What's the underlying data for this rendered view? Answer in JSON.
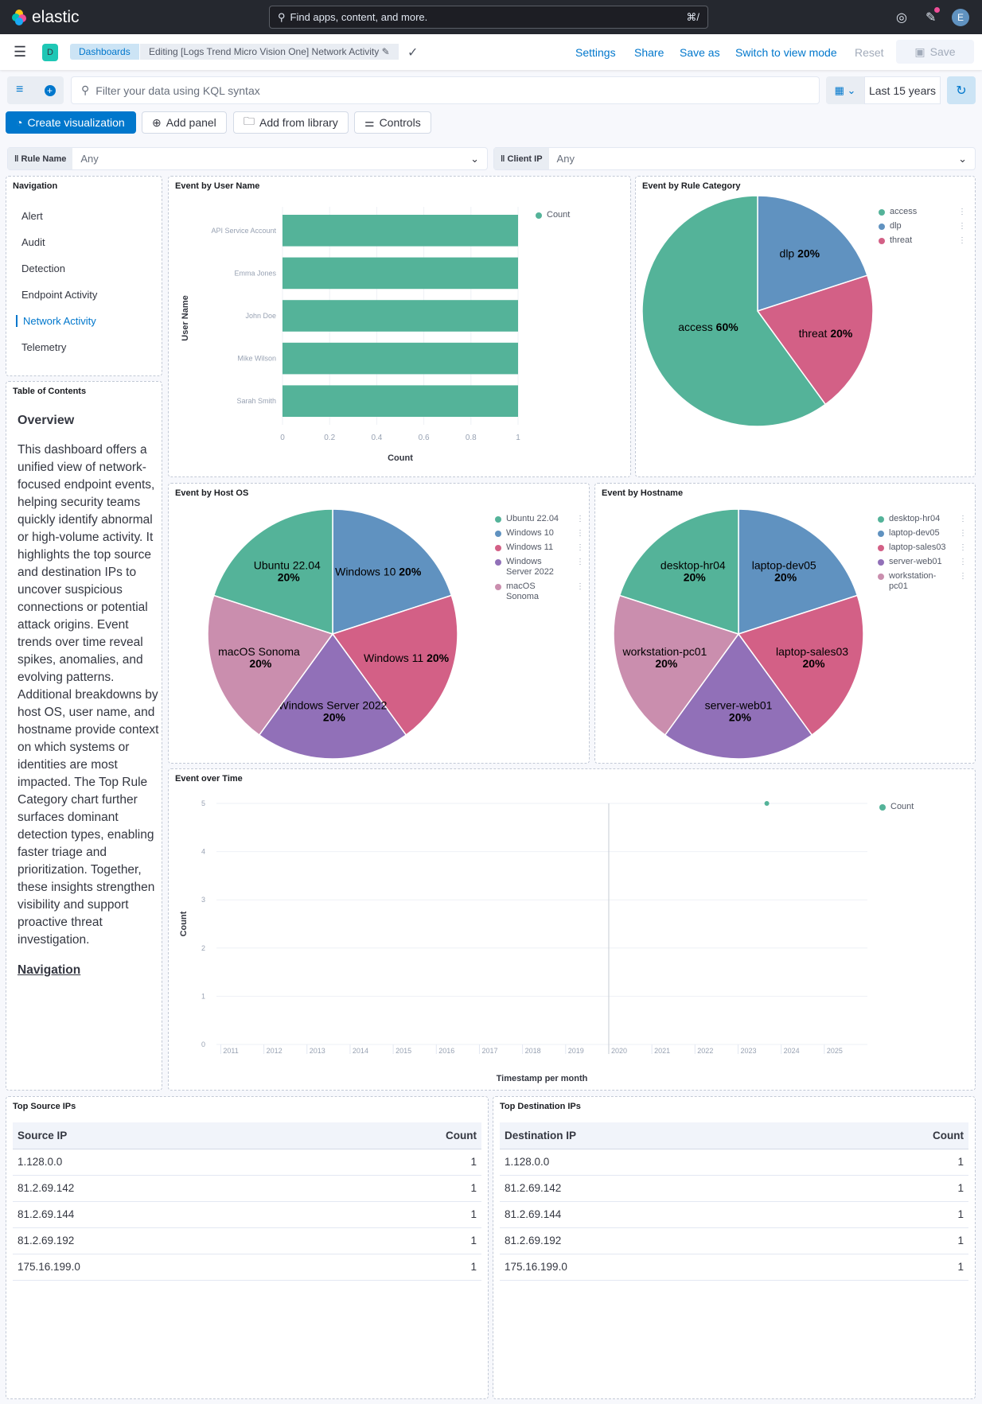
{
  "header": {
    "brand": "elastic",
    "search_placeholder": "Find apps, content, and more.",
    "shortcut": "⌘/",
    "avatar": "E"
  },
  "nav": {
    "space": "D",
    "breadcrumbs": [
      "Dashboards",
      "Editing [Logs Trend Micro Vision One] Network Activity"
    ],
    "links": [
      "Settings",
      "Share",
      "Save as",
      "Switch to view mode",
      "Reset"
    ],
    "save": "Save"
  },
  "query": {
    "placeholder": "Filter your data using KQL syntax",
    "time": "Last 15 years"
  },
  "toolbar": {
    "create": "Create visualization",
    "add_panel": "Add panel",
    "add_library": "Add from library",
    "controls": "Controls"
  },
  "controls": [
    {
      "label": "Rule Name",
      "value": "Any"
    },
    {
      "label": "Client IP",
      "value": "Any"
    }
  ],
  "navigation": {
    "title": "Navigation",
    "items": [
      "Alert",
      "Audit",
      "Detection",
      "Endpoint Activity",
      "Network Activity",
      "Telemetry"
    ],
    "active": "Network Activity"
  },
  "toc": {
    "title": "Table of Contents",
    "heading": "Overview",
    "body": "This dashboard offers a unified view of network-focused endpoint events, helping security teams quickly identify abnormal or high-volume activity. It highlights the top source and destination IPs to uncover suspicious connections or potential attack origins. Event trends over time reveal spikes, anomalies, and evolving patterns. Additional breakdowns by host OS, user name, and hostname provide context on which systems or identities are most impacted. The Top Rule Category chart further surfaces dominant detection types, enabling faster triage and prioritization. Together, these insights strengthen visibility and support proactive threat investigation.",
    "link": "Navigation"
  },
  "colors": {
    "green": "#54b399",
    "blue": "#6092c0",
    "red": "#d36086",
    "purple": "#9170b8",
    "pink": "#ca8eae",
    "accent": "#0077cc"
  },
  "chart_data": [
    {
      "id": "user",
      "type": "bar",
      "orientation": "horizontal",
      "title": "Event by User Name",
      "categories": [
        "API Service Account",
        "Emma Jones",
        "John Doe",
        "Mike Wilson",
        "Sarah Smith"
      ],
      "values": [
        1,
        1,
        1,
        1,
        1
      ],
      "xlabel": "Count",
      "ylabel": "User Name",
      "xlim": [
        0,
        1
      ],
      "ticks": [
        "0",
        "0.2",
        "0.4",
        "0.6",
        "0.8",
        "1"
      ],
      "legend": [
        "Count"
      ],
      "legend_position": "top-right",
      "color": "#54b399"
    },
    {
      "id": "rule",
      "type": "pie",
      "title": "Event by Rule Category",
      "slices": [
        {
          "label": "dlp",
          "value": 20,
          "color": "#6092c0"
        },
        {
          "label": "threat",
          "value": 20,
          "color": "#d36086"
        },
        {
          "label": "access",
          "value": 60,
          "color": "#54b399"
        }
      ],
      "legend": [
        "access",
        "dlp",
        "threat"
      ]
    },
    {
      "id": "os",
      "type": "pie",
      "title": "Event by Host OS",
      "slices": [
        {
          "label": "Windows 10",
          "value": 20,
          "color": "#6092c0"
        },
        {
          "label": "Windows 11",
          "value": 20,
          "color": "#d36086"
        },
        {
          "label": "Windows Server 2022",
          "value": 20,
          "color": "#9170b8"
        },
        {
          "label": "macOS Sonoma",
          "value": 20,
          "color": "#ca8eae"
        },
        {
          "label": "Ubuntu 22.04",
          "value": 20,
          "color": "#54b399"
        }
      ],
      "legend": [
        "Ubuntu 22.04",
        "Windows 10",
        "Windows 11",
        "Windows Server 2022",
        "macOS Sonoma"
      ]
    },
    {
      "id": "host",
      "type": "pie",
      "title": "Event by Hostname",
      "slices": [
        {
          "label": "laptop-dev05",
          "value": 20,
          "color": "#6092c0"
        },
        {
          "label": "laptop-sales03",
          "value": 20,
          "color": "#d36086"
        },
        {
          "label": "server-web01",
          "value": 20,
          "color": "#9170b8"
        },
        {
          "label": "workstation-pc01",
          "value": 20,
          "color": "#ca8eae"
        },
        {
          "label": "desktop-hr04",
          "value": 20,
          "color": "#54b399"
        }
      ],
      "legend": [
        "desktop-hr04",
        "laptop-dev05",
        "laptop-sales03",
        "server-web01",
        "workstation-pc01"
      ]
    },
    {
      "id": "time",
      "type": "scatter",
      "title": "Event over Time",
      "xlabel": "Timestamp per month",
      "ylabel": "Count",
      "x_ticks": [
        "2011",
        "2012",
        "2013",
        "2014",
        "2015",
        "2016",
        "2017",
        "2018",
        "2019",
        "2020",
        "2021",
        "2022",
        "2023",
        "2024",
        "2025"
      ],
      "y_ticks": [
        "0",
        "1",
        "2",
        "3",
        "4",
        "5"
      ],
      "ylim": [
        0,
        5
      ],
      "points": [
        {
          "x": "2023-09",
          "y": 5
        }
      ],
      "marker_line": "2020-01",
      "legend": [
        "Count"
      ],
      "grid": true
    }
  ],
  "tables": [
    {
      "title": "Top Source IPs",
      "columns": [
        "Source IP",
        "Count"
      ],
      "rows": [
        [
          "1.128.0.0",
          "1"
        ],
        [
          "81.2.69.142",
          "1"
        ],
        [
          "81.2.69.144",
          "1"
        ],
        [
          "81.2.69.192",
          "1"
        ],
        [
          "175.16.199.0",
          "1"
        ]
      ]
    },
    {
      "title": "Top Destination IPs",
      "columns": [
        "Destination IP",
        "Count"
      ],
      "rows": [
        [
          "1.128.0.0",
          "1"
        ],
        [
          "81.2.69.142",
          "1"
        ],
        [
          "81.2.69.144",
          "1"
        ],
        [
          "81.2.69.192",
          "1"
        ],
        [
          "175.16.199.0",
          "1"
        ]
      ]
    }
  ]
}
